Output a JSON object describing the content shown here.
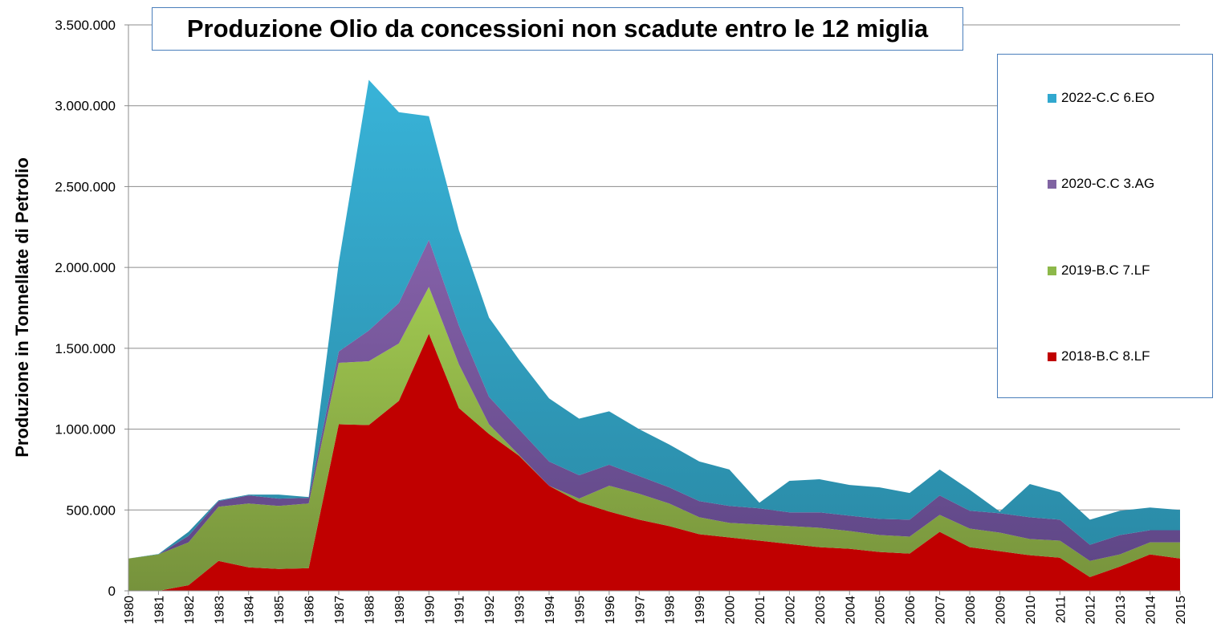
{
  "chart_data": {
    "type": "area",
    "stacked": true,
    "title": "Produzione Olio da concessioni non scadute entro le 12 miglia",
    "xlabel": "",
    "ylabel": "Produzione in Tonnellate di Petrolio",
    "ylim": [
      0,
      3500000
    ],
    "yticks": [
      0,
      500000,
      1000000,
      1500000,
      2000000,
      2500000,
      3000000,
      3500000
    ],
    "ytick_labels": [
      "0",
      "500.000",
      "1.000.000",
      "1.500.000",
      "2.000.000",
      "2.500.000",
      "3.000.000",
      "3.500.000"
    ],
    "grid": true,
    "legend_position": "right",
    "x": [
      "1980",
      "1981",
      "1982",
      "1983",
      "1984",
      "1985",
      "1986",
      "1987",
      "1988",
      "1989",
      "1990",
      "1991",
      "1992",
      "1993",
      "1994",
      "1995",
      "1996",
      "1997",
      "1998",
      "1999",
      "2000",
      "2001",
      "2002",
      "2003",
      "2004",
      "2005",
      "2006",
      "2007",
      "2008",
      "2009",
      "2010",
      "2011",
      "2012",
      "2013",
      "2014",
      "2015"
    ],
    "series": [
      {
        "name": "2018-B.C 8.LF",
        "color": "#c00000",
        "values": [
          0,
          0,
          35000,
          185000,
          145000,
          135000,
          140000,
          1030000,
          1025000,
          1175000,
          1590000,
          1130000,
          970000,
          835000,
          650000,
          550000,
          490000,
          440000,
          400000,
          350000,
          330000,
          310000,
          290000,
          270000,
          260000,
          240000,
          230000,
          365000,
          270000,
          245000,
          220000,
          205000,
          85000,
          150000,
          225000,
          200000
        ]
      },
      {
        "name": "2019-B.C 7.LF",
        "color": "#9bbb59",
        "values": [
          200000,
          225000,
          265000,
          335000,
          395000,
          390000,
          400000,
          380000,
          395000,
          355000,
          290000,
          270000,
          60000,
          5000,
          0,
          20000,
          160000,
          160000,
          140000,
          105000,
          90000,
          100000,
          110000,
          120000,
          110000,
          105000,
          105000,
          105000,
          115000,
          115000,
          100000,
          105000,
          100000,
          75000,
          75000,
          100000
        ]
      },
      {
        "name": "2020-C.C 3.AG",
        "color": "#8064a2",
        "values": [
          0,
          0,
          40000,
          35000,
          50000,
          45000,
          35000,
          70000,
          190000,
          250000,
          290000,
          240000,
          170000,
          160000,
          150000,
          145000,
          130000,
          110000,
          100000,
          100000,
          105000,
          100000,
          85000,
          95000,
          95000,
          100000,
          105000,
          120000,
          110000,
          120000,
          135000,
          130000,
          100000,
          120000,
          75000,
          75000
        ]
      },
      {
        "name": "2022-C.C 6.EO",
        "color": "#31a8cf",
        "values": [
          0,
          3000,
          25000,
          5000,
          5000,
          25000,
          5000,
          550000,
          1550000,
          1180000,
          765000,
          590000,
          490000,
          430000,
          390000,
          350000,
          330000,
          290000,
          265000,
          245000,
          225000,
          35000,
          195000,
          205000,
          190000,
          195000,
          165000,
          160000,
          130000,
          10000,
          205000,
          170000,
          155000,
          150000,
          140000,
          125000
        ]
      }
    ],
    "legend_order": [
      "2022-C.C 6.EO",
      "2020-C.C 3.AG",
      "2019-B.C 7.LF",
      "2018-B.C 8.LF"
    ]
  }
}
